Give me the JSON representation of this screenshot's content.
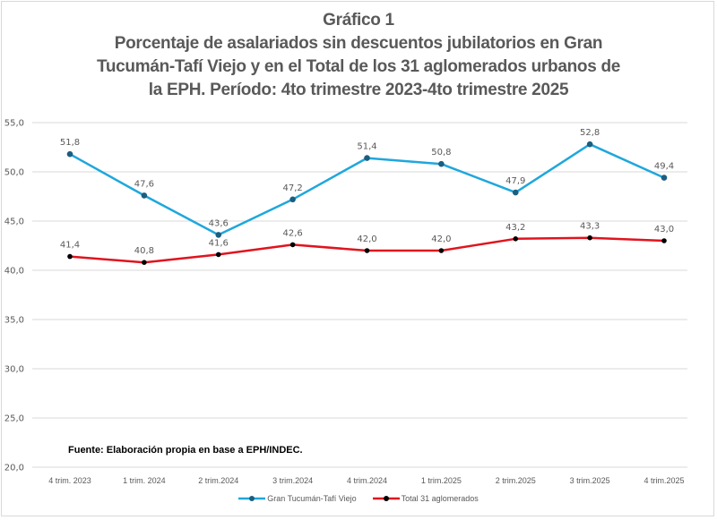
{
  "chart_data": {
    "type": "line",
    "title_lines": [
      "Gráfico 1",
      "Porcentaje de asalariados sin descuentos jubilatorios en Gran",
      "Tucumán-Tafí Viejo y en el Total de los 31 aglomerados urbanos de",
      "la EPH. Período: 4to trimestre 2023-4to trimestre 2025"
    ],
    "categories": [
      "4 trim. 2023",
      "1 trim. 2024",
      "2 trim.2024",
      "3 trim.2024",
      "4 trim.2024",
      "1 trim.2025",
      "2 trim.2025",
      "3 trim.2025",
      "4 trim.2025"
    ],
    "series": [
      {
        "name": "Gran Tucumán-Tafí Viejo",
        "values": [
          51.8,
          47.6,
          43.6,
          47.2,
          51.4,
          50.8,
          47.9,
          52.8,
          49.4
        ],
        "labels": [
          "51,8",
          "47,6",
          "43,6",
          "47,2",
          "51,4",
          "50,8",
          "47,9",
          "52,8",
          "49,4"
        ],
        "line_color": "#1fa7dc",
        "marker_color": "#1b5e80"
      },
      {
        "name": "Total 31 aglomerados",
        "values": [
          41.4,
          40.8,
          41.6,
          42.6,
          42.0,
          42.0,
          43.2,
          43.3,
          43.0
        ],
        "labels": [
          "41,4",
          "40,8",
          "41,6",
          "42,6",
          "42,0",
          "42,0",
          "43,2",
          "43,3",
          "43,0"
        ],
        "line_color": "#e0141e",
        "marker_color": "#000000"
      }
    ],
    "xlabel": "",
    "ylabel": "",
    "ylim": [
      20,
      55
    ],
    "yticks": [
      20,
      25,
      30,
      35,
      40,
      45,
      50,
      55
    ],
    "ytick_labels": [
      "20,0",
      "25,0",
      "30,0",
      "35,0",
      "40,0",
      "45,0",
      "50,0",
      "55,0"
    ],
    "grid": true,
    "legend_position": "bottom",
    "source_note": "Fuente: Elaboración propia en base a EPH/INDEC."
  }
}
